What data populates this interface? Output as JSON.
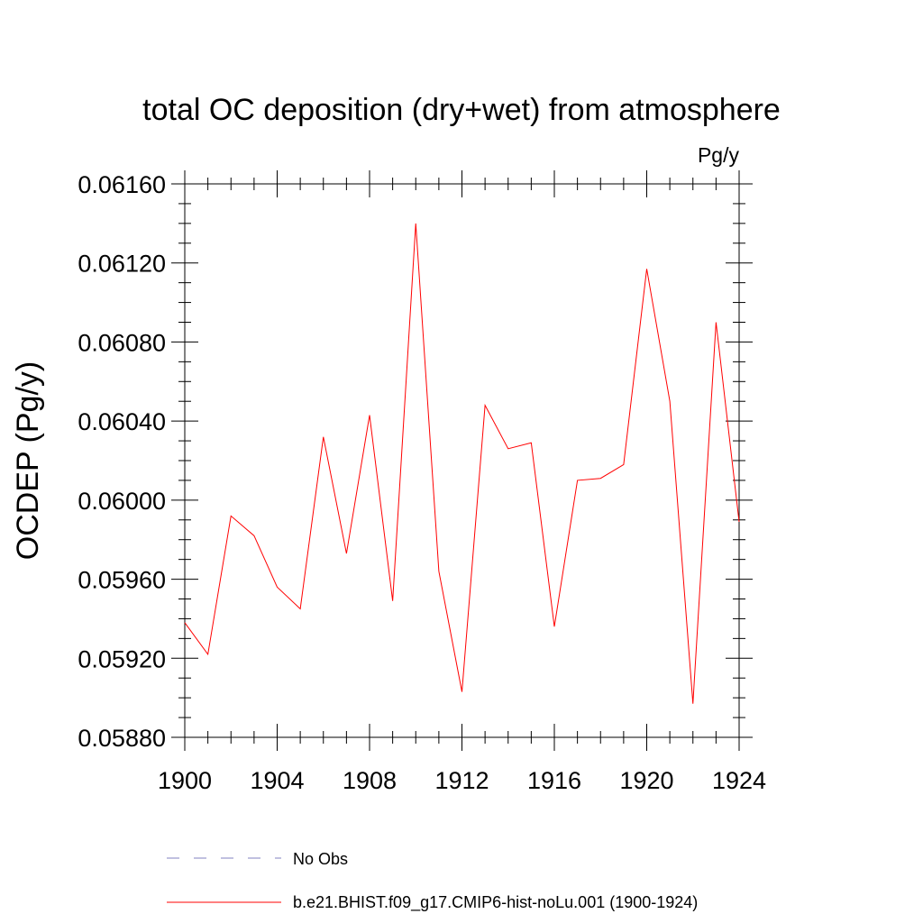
{
  "chart_data": {
    "type": "line",
    "title": "total OC deposition (dry+wet) from atmosphere",
    "units_label": "Pg/y",
    "ylabel": "OCDEP  (Pg/y)",
    "xlabel": "",
    "xlim": [
      1900,
      1924
    ],
    "ylim": [
      0.0588,
      0.0616
    ],
    "x_ticks": [
      1900,
      1904,
      1908,
      1912,
      1916,
      1920,
      1924
    ],
    "x_tick_labels": [
      "1900",
      "1904",
      "1908",
      "1912",
      "1916",
      "1920",
      "1924"
    ],
    "y_ticks": [
      0.0588,
      0.0592,
      0.0596,
      0.06,
      0.0604,
      0.0608,
      0.0612,
      0.0616
    ],
    "y_tick_labels": [
      "0.05880",
      "0.05920",
      "0.05960",
      "0.06000",
      "0.06040",
      "0.06080",
      "0.06120",
      "0.06160"
    ],
    "grid": false,
    "legend_position": "bottom",
    "series": [
      {
        "name": "b.e21.BHIST.f09_g17.CMIP6-hist-noLu.001 (1900-1924)",
        "color": "#ff0000",
        "style": "solid",
        "x": [
          1900,
          1901,
          1902,
          1903,
          1904,
          1905,
          1906,
          1907,
          1908,
          1909,
          1910,
          1911,
          1912,
          1913,
          1914,
          1915,
          1916,
          1917,
          1918,
          1919,
          1920,
          1921,
          1922,
          1923,
          1924
        ],
        "values": [
          0.05938,
          0.05922,
          0.05992,
          0.05982,
          0.05956,
          0.05945,
          0.06032,
          0.05973,
          0.06043,
          0.05949,
          0.0614,
          0.05964,
          0.05903,
          0.06048,
          0.06026,
          0.06029,
          0.05936,
          0.0601,
          0.06011,
          0.06018,
          0.06117,
          0.0605,
          0.05897,
          0.0609,
          0.05989
        ]
      },
      {
        "name": "No Obs",
        "color": "#8080c0",
        "style": "dashed",
        "x": [],
        "values": []
      }
    ]
  }
}
